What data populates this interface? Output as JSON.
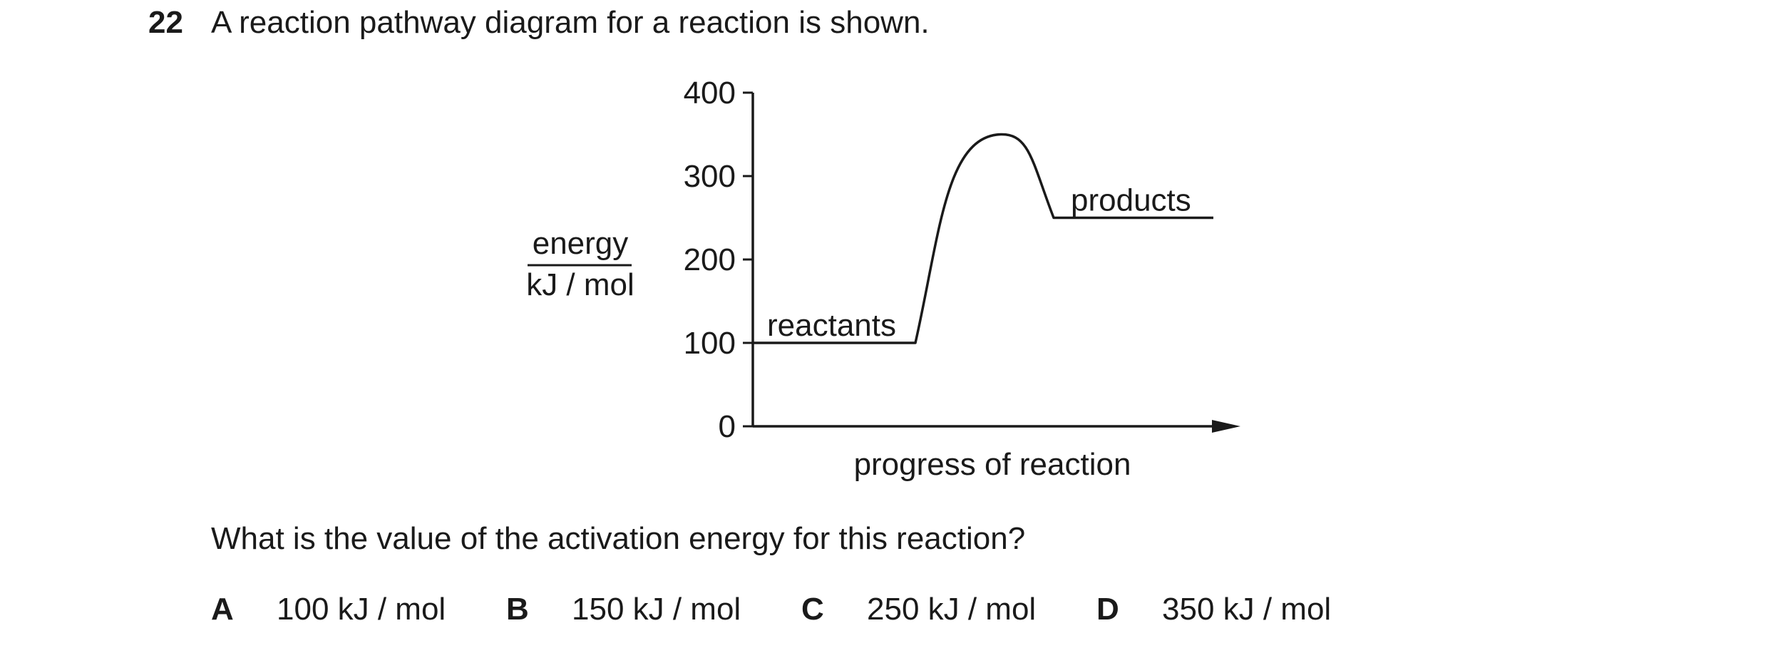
{
  "question": {
    "number": "22",
    "stem": "A reaction pathway diagram for a reaction is shown.",
    "prompt": "What is the value of the activation energy for this reaction?"
  },
  "options": [
    {
      "letter": "A",
      "text": "100 kJ / mol"
    },
    {
      "letter": "B",
      "text": "150 kJ / mol"
    },
    {
      "letter": "C",
      "text": "250 kJ / mol"
    },
    {
      "letter": "D",
      "text": "350 kJ / mol"
    }
  ],
  "chart_data": {
    "type": "line",
    "title": "",
    "xlabel": "progress of reaction",
    "ylabel_top": "energy",
    "ylabel_bottom": "kJ / mol",
    "ylim": [
      0,
      400
    ],
    "yticks": [
      0,
      100,
      200,
      300,
      400
    ],
    "grid": false,
    "levels": {
      "reactants": {
        "label": "reactants",
        "energy": 100
      },
      "peak": {
        "energy": 350
      },
      "products": {
        "label": "products",
        "energy": 250
      }
    }
  }
}
